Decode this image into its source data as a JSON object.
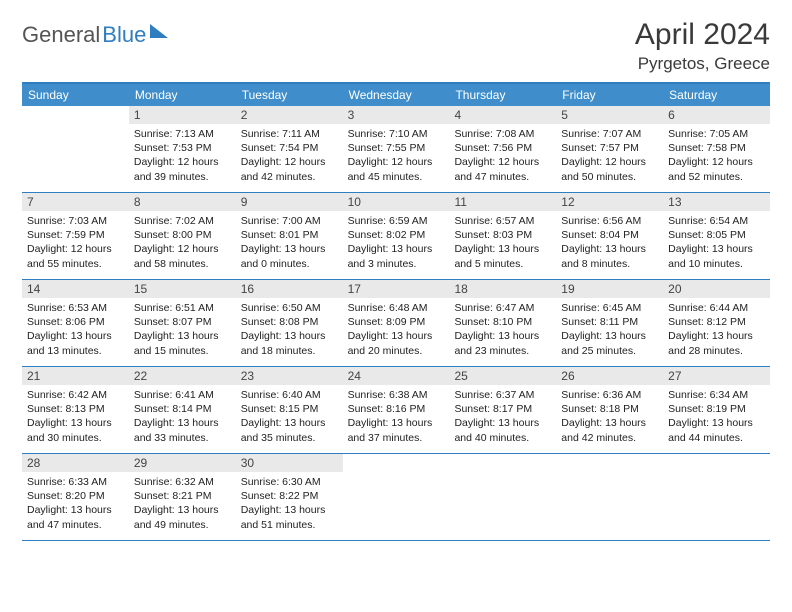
{
  "colors": {
    "accent": "#2f7ec0",
    "header_bg": "#3f8ecb",
    "daynum_bg": "#e9e9e9",
    "text": "#222222",
    "title": "#3a3a3a"
  },
  "logo": {
    "part1": "General",
    "part2": "Blue"
  },
  "title": "April 2024",
  "location": "Pyrgetos, Greece",
  "daysOfWeek": [
    "Sunday",
    "Monday",
    "Tuesday",
    "Wednesday",
    "Thursday",
    "Friday",
    "Saturday"
  ],
  "weeks": [
    [
      null,
      {
        "n": "1",
        "sr": "Sunrise: 7:13 AM",
        "ss": "Sunset: 7:53 PM",
        "d1": "Daylight: 12 hours",
        "d2": "and 39 minutes."
      },
      {
        "n": "2",
        "sr": "Sunrise: 7:11 AM",
        "ss": "Sunset: 7:54 PM",
        "d1": "Daylight: 12 hours",
        "d2": "and 42 minutes."
      },
      {
        "n": "3",
        "sr": "Sunrise: 7:10 AM",
        "ss": "Sunset: 7:55 PM",
        "d1": "Daylight: 12 hours",
        "d2": "and 45 minutes."
      },
      {
        "n": "4",
        "sr": "Sunrise: 7:08 AM",
        "ss": "Sunset: 7:56 PM",
        "d1": "Daylight: 12 hours",
        "d2": "and 47 minutes."
      },
      {
        "n": "5",
        "sr": "Sunrise: 7:07 AM",
        "ss": "Sunset: 7:57 PM",
        "d1": "Daylight: 12 hours",
        "d2": "and 50 minutes."
      },
      {
        "n": "6",
        "sr": "Sunrise: 7:05 AM",
        "ss": "Sunset: 7:58 PM",
        "d1": "Daylight: 12 hours",
        "d2": "and 52 minutes."
      }
    ],
    [
      {
        "n": "7",
        "sr": "Sunrise: 7:03 AM",
        "ss": "Sunset: 7:59 PM",
        "d1": "Daylight: 12 hours",
        "d2": "and 55 minutes."
      },
      {
        "n": "8",
        "sr": "Sunrise: 7:02 AM",
        "ss": "Sunset: 8:00 PM",
        "d1": "Daylight: 12 hours",
        "d2": "and 58 minutes."
      },
      {
        "n": "9",
        "sr": "Sunrise: 7:00 AM",
        "ss": "Sunset: 8:01 PM",
        "d1": "Daylight: 13 hours",
        "d2": "and 0 minutes."
      },
      {
        "n": "10",
        "sr": "Sunrise: 6:59 AM",
        "ss": "Sunset: 8:02 PM",
        "d1": "Daylight: 13 hours",
        "d2": "and 3 minutes."
      },
      {
        "n": "11",
        "sr": "Sunrise: 6:57 AM",
        "ss": "Sunset: 8:03 PM",
        "d1": "Daylight: 13 hours",
        "d2": "and 5 minutes."
      },
      {
        "n": "12",
        "sr": "Sunrise: 6:56 AM",
        "ss": "Sunset: 8:04 PM",
        "d1": "Daylight: 13 hours",
        "d2": "and 8 minutes."
      },
      {
        "n": "13",
        "sr": "Sunrise: 6:54 AM",
        "ss": "Sunset: 8:05 PM",
        "d1": "Daylight: 13 hours",
        "d2": "and 10 minutes."
      }
    ],
    [
      {
        "n": "14",
        "sr": "Sunrise: 6:53 AM",
        "ss": "Sunset: 8:06 PM",
        "d1": "Daylight: 13 hours",
        "d2": "and 13 minutes."
      },
      {
        "n": "15",
        "sr": "Sunrise: 6:51 AM",
        "ss": "Sunset: 8:07 PM",
        "d1": "Daylight: 13 hours",
        "d2": "and 15 minutes."
      },
      {
        "n": "16",
        "sr": "Sunrise: 6:50 AM",
        "ss": "Sunset: 8:08 PM",
        "d1": "Daylight: 13 hours",
        "d2": "and 18 minutes."
      },
      {
        "n": "17",
        "sr": "Sunrise: 6:48 AM",
        "ss": "Sunset: 8:09 PM",
        "d1": "Daylight: 13 hours",
        "d2": "and 20 minutes."
      },
      {
        "n": "18",
        "sr": "Sunrise: 6:47 AM",
        "ss": "Sunset: 8:10 PM",
        "d1": "Daylight: 13 hours",
        "d2": "and 23 minutes."
      },
      {
        "n": "19",
        "sr": "Sunrise: 6:45 AM",
        "ss": "Sunset: 8:11 PM",
        "d1": "Daylight: 13 hours",
        "d2": "and 25 minutes."
      },
      {
        "n": "20",
        "sr": "Sunrise: 6:44 AM",
        "ss": "Sunset: 8:12 PM",
        "d1": "Daylight: 13 hours",
        "d2": "and 28 minutes."
      }
    ],
    [
      {
        "n": "21",
        "sr": "Sunrise: 6:42 AM",
        "ss": "Sunset: 8:13 PM",
        "d1": "Daylight: 13 hours",
        "d2": "and 30 minutes."
      },
      {
        "n": "22",
        "sr": "Sunrise: 6:41 AM",
        "ss": "Sunset: 8:14 PM",
        "d1": "Daylight: 13 hours",
        "d2": "and 33 minutes."
      },
      {
        "n": "23",
        "sr": "Sunrise: 6:40 AM",
        "ss": "Sunset: 8:15 PM",
        "d1": "Daylight: 13 hours",
        "d2": "and 35 minutes."
      },
      {
        "n": "24",
        "sr": "Sunrise: 6:38 AM",
        "ss": "Sunset: 8:16 PM",
        "d1": "Daylight: 13 hours",
        "d2": "and 37 minutes."
      },
      {
        "n": "25",
        "sr": "Sunrise: 6:37 AM",
        "ss": "Sunset: 8:17 PM",
        "d1": "Daylight: 13 hours",
        "d2": "and 40 minutes."
      },
      {
        "n": "26",
        "sr": "Sunrise: 6:36 AM",
        "ss": "Sunset: 8:18 PM",
        "d1": "Daylight: 13 hours",
        "d2": "and 42 minutes."
      },
      {
        "n": "27",
        "sr": "Sunrise: 6:34 AM",
        "ss": "Sunset: 8:19 PM",
        "d1": "Daylight: 13 hours",
        "d2": "and 44 minutes."
      }
    ],
    [
      {
        "n": "28",
        "sr": "Sunrise: 6:33 AM",
        "ss": "Sunset: 8:20 PM",
        "d1": "Daylight: 13 hours",
        "d2": "and 47 minutes."
      },
      {
        "n": "29",
        "sr": "Sunrise: 6:32 AM",
        "ss": "Sunset: 8:21 PM",
        "d1": "Daylight: 13 hours",
        "d2": "and 49 minutes."
      },
      {
        "n": "30",
        "sr": "Sunrise: 6:30 AM",
        "ss": "Sunset: 8:22 PM",
        "d1": "Daylight: 13 hours",
        "d2": "and 51 minutes."
      },
      null,
      null,
      null,
      null
    ]
  ]
}
